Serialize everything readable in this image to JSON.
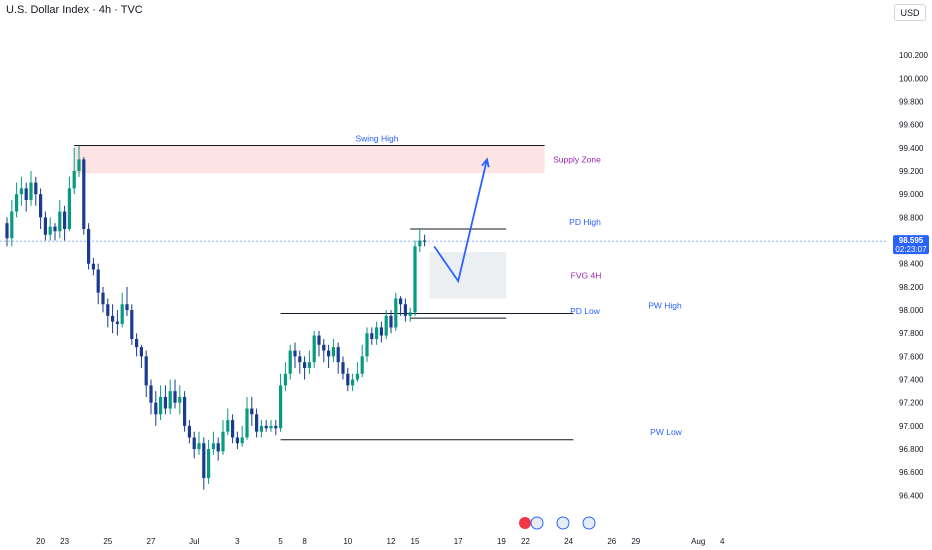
{
  "header": {
    "title": "U.S. Dollar Index · 4h · TVC",
    "currency": "USD"
  },
  "price_tag": {
    "price": "98.595",
    "countdown": "02:23:07"
  },
  "colors": {
    "bull": "#089981",
    "bear": "#1a3a8f",
    "level": "#131722",
    "label_blue": "#2962ff",
    "fvg_label": "#9c27b0",
    "supply_label": "#9c27b0",
    "supply_fill": "#fce4e4",
    "fvg_fill": "#eceff2",
    "projection": "#2962ff",
    "tag_bg": "#2962ff"
  },
  "chart_data": {
    "type": "candlestick",
    "title": "U.S. Dollar Index · 4h · TVC",
    "ylim": [
      96.3,
      100.4
    ],
    "y_ticks": [
      "100.200",
      "100.000",
      "99.800",
      "99.600",
      "99.400",
      "99.200",
      "99.000",
      "98.800",
      "98.400",
      "98.200",
      "98.000",
      "97.800",
      "97.600",
      "97.400",
      "97.200",
      "97.000",
      "96.800",
      "96.600",
      "96.400"
    ],
    "x_ticks": [
      {
        "label": "20",
        "i": 7
      },
      {
        "label": "23",
        "i": 12
      },
      {
        "label": "25",
        "i": 21
      },
      {
        "label": "27",
        "i": 30
      },
      {
        "label": "Jul",
        "i": 39
      },
      {
        "label": "3",
        "i": 48
      },
      {
        "label": "5",
        "i": 57
      },
      {
        "label": "8",
        "i": 62
      },
      {
        "label": "10",
        "i": 71
      },
      {
        "label": "12",
        "i": 80
      },
      {
        "label": "15",
        "i": 85
      },
      {
        "label": "17",
        "i": 94
      },
      {
        "label": "19",
        "i": 103
      },
      {
        "label": "22",
        "i": 108
      },
      {
        "label": "24",
        "i": 117
      },
      {
        "label": "26",
        "i": 126
      },
      {
        "label": "29",
        "i": 131
      },
      {
        "label": "Aug",
        "i": 144
      },
      {
        "label": "4",
        "i": 149
      }
    ],
    "candles": [
      [
        98.75,
        98.62,
        98.8,
        98.55
      ],
      [
        98.62,
        98.85,
        98.95,
        98.55
      ],
      [
        98.85,
        99.0,
        99.1,
        98.8
      ],
      [
        99.0,
        99.05,
        99.15,
        98.9
      ],
      [
        99.05,
        98.95,
        99.1,
        98.85
      ],
      [
        98.95,
        99.1,
        99.2,
        98.9
      ],
      [
        99.1,
        99.0,
        99.15,
        98.9
      ],
      [
        99.0,
        98.8,
        99.05,
        98.7
      ],
      [
        98.8,
        98.65,
        98.85,
        98.6
      ],
      [
        98.65,
        98.72,
        98.8,
        98.6
      ],
      [
        98.72,
        98.68,
        98.75,
        98.6
      ],
      [
        98.68,
        98.85,
        98.95,
        98.62
      ],
      [
        98.85,
        98.7,
        98.9,
        98.6
      ],
      [
        98.7,
        99.05,
        99.15,
        98.68
      ],
      [
        99.05,
        99.2,
        99.4,
        99.0
      ],
      [
        99.2,
        99.3,
        99.42,
        99.15
      ],
      [
        99.3,
        98.7,
        99.32,
        98.65
      ],
      [
        98.7,
        98.4,
        98.75,
        98.35
      ],
      [
        98.4,
        98.35,
        98.45,
        98.3
      ],
      [
        98.35,
        98.15,
        98.4,
        98.05
      ],
      [
        98.15,
        98.05,
        98.2,
        97.98
      ],
      [
        98.05,
        97.95,
        98.1,
        97.85
      ],
      [
        97.95,
        97.9,
        98.05,
        97.8
      ],
      [
        97.9,
        97.88,
        98.0,
        97.78
      ],
      [
        97.88,
        98.05,
        98.15,
        97.85
      ],
      [
        98.05,
        98.0,
        98.2,
        97.95
      ],
      [
        98.0,
        97.75,
        98.05,
        97.7
      ],
      [
        97.75,
        97.68,
        97.8,
        97.6
      ],
      [
        97.68,
        97.6,
        97.7,
        97.5
      ],
      [
        97.6,
        97.35,
        97.65,
        97.25
      ],
      [
        97.35,
        97.2,
        97.4,
        97.1
      ],
      [
        97.2,
        97.1,
        97.3,
        97.0
      ],
      [
        97.1,
        97.25,
        97.35,
        97.05
      ],
      [
        97.25,
        97.15,
        97.35,
        97.1
      ],
      [
        97.15,
        97.3,
        97.4,
        97.1
      ],
      [
        97.3,
        97.2,
        97.4,
        97.15
      ],
      [
        97.2,
        97.25,
        97.35,
        97.1
      ],
      [
        97.25,
        97.0,
        97.3,
        96.95
      ],
      [
        97.0,
        96.9,
        97.05,
        96.85
      ],
      [
        96.9,
        96.8,
        96.95,
        96.72
      ],
      [
        96.8,
        96.85,
        96.95,
        96.75
      ],
      [
        96.85,
        96.55,
        96.9,
        96.45
      ],
      [
        96.55,
        96.8,
        96.88,
        96.5
      ],
      [
        96.8,
        96.85,
        96.95,
        96.75
      ],
      [
        96.85,
        96.78,
        96.9,
        96.7
      ],
      [
        96.78,
        96.95,
        97.05,
        96.75
      ],
      [
        96.95,
        97.05,
        97.15,
        96.92
      ],
      [
        97.05,
        96.9,
        97.1,
        96.85
      ],
      [
        96.9,
        96.85,
        96.95,
        96.8
      ],
      [
        96.85,
        96.9,
        97.0,
        96.82
      ],
      [
        96.9,
        97.15,
        97.25,
        96.88
      ],
      [
        97.15,
        97.1,
        97.25,
        97.0
      ],
      [
        97.1,
        96.95,
        97.15,
        96.9
      ],
      [
        96.95,
        97.0,
        97.05,
        96.9
      ],
      [
        97.0,
        96.98,
        97.05,
        96.95
      ],
      [
        96.98,
        97.0,
        97.05,
        96.95
      ],
      [
        97.0,
        96.98,
        97.05,
        96.92
      ],
      [
        96.98,
        97.35,
        97.45,
        96.95
      ],
      [
        97.35,
        97.45,
        97.55,
        97.3
      ],
      [
        97.45,
        97.65,
        97.7,
        97.4
      ],
      [
        97.65,
        97.6,
        97.72,
        97.5
      ],
      [
        97.6,
        97.55,
        97.65,
        97.45
      ],
      [
        97.55,
        97.5,
        97.6,
        97.4
      ],
      [
        97.5,
        97.55,
        97.65,
        97.45
      ],
      [
        97.55,
        97.78,
        97.82,
        97.5
      ],
      [
        97.78,
        97.7,
        97.82,
        97.6
      ],
      [
        97.7,
        97.65,
        97.75,
        97.55
      ],
      [
        97.65,
        97.6,
        97.7,
        97.5
      ],
      [
        97.6,
        97.68,
        97.75,
        97.55
      ],
      [
        97.68,
        97.55,
        97.72,
        97.45
      ],
      [
        97.55,
        97.45,
        97.6,
        97.4
      ],
      [
        97.45,
        97.35,
        97.5,
        97.3
      ],
      [
        97.35,
        97.4,
        97.45,
        97.3
      ],
      [
        97.4,
        97.45,
        97.55,
        97.38
      ],
      [
        97.45,
        97.6,
        97.7,
        97.42
      ],
      [
        97.6,
        97.8,
        97.85,
        97.55
      ],
      [
        97.8,
        97.75,
        97.85,
        97.7
      ],
      [
        97.75,
        97.85,
        97.9,
        97.7
      ],
      [
        97.85,
        97.78,
        97.9,
        97.72
      ],
      [
        97.78,
        97.95,
        98.0,
        97.75
      ],
      [
        97.95,
        97.85,
        98.0,
        97.8
      ],
      [
        97.85,
        98.1,
        98.15,
        97.82
      ],
      [
        98.1,
        98.05,
        98.12,
        97.95
      ],
      [
        98.05,
        97.95,
        98.1,
        97.9
      ],
      [
        97.95,
        97.98,
        98.02,
        97.9
      ],
      [
        97.98,
        98.55,
        98.6,
        97.95
      ],
      [
        98.55,
        98.6,
        98.7,
        98.5
      ],
      [
        98.6,
        98.59,
        98.65,
        98.55
      ]
    ],
    "levels": [
      {
        "name": "Swing High",
        "price": 99.42,
        "from_i": 14,
        "to_i": 112
      },
      {
        "name": "PD High",
        "price": 98.7,
        "from_i": 84,
        "to_i": 104
      },
      {
        "name": "PD Low",
        "price": 97.93,
        "from_i": 84,
        "to_i": 104
      },
      {
        "name": "PW High",
        "price": 97.97,
        "from_i": 57,
        "to_i": 118
      },
      {
        "name": "PW Low",
        "price": 96.88,
        "from_i": 57,
        "to_i": 118
      }
    ],
    "zones": [
      {
        "name": "Supply Zone",
        "from_price": 99.18,
        "to_price": 99.42,
        "from_i": 14,
        "to_i": 112
      },
      {
        "name": "FVG 4H",
        "from_price": 98.1,
        "to_price": 98.5,
        "from_i": 88,
        "to_i": 104
      }
    ],
    "projection": [
      [
        89,
        98.55
      ],
      [
        94,
        98.25
      ],
      [
        100,
        99.3
      ]
    ],
    "last_price": 98.595
  }
}
